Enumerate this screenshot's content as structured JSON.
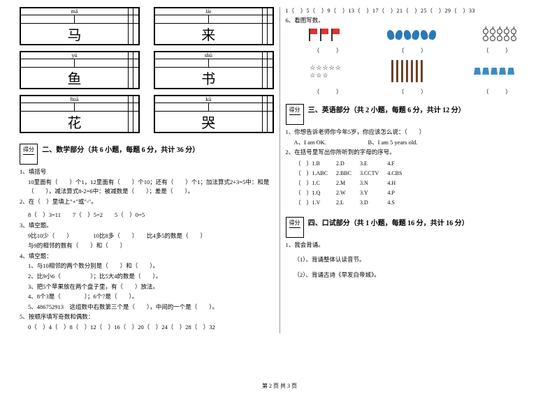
{
  "charBoxes": [
    {
      "pinyin": "mǎ",
      "char": "马"
    },
    {
      "pinyin": "lái",
      "char": "来"
    },
    {
      "pinyin": "yú",
      "char": "鱼"
    },
    {
      "pinyin": "shū",
      "char": "书"
    },
    {
      "pinyin": "huā",
      "char": "花"
    },
    {
      "pinyin": "kū",
      "char": "哭"
    }
  ],
  "scoreLabel": "得分",
  "section2": {
    "title": "二、数学部分（共 6 小题，每题 6 分，共计 36 分）",
    "q1": "1、填括号",
    "q1a": "10里面有（　　）个1，12里面有（　　）个10；还有（　　）个1；加法算式2+3=5中：和是（　　），减法算式8-2=6中：被减数是（　　）；差是（　　）。",
    "q2": "2、在（　）里填上\"+\"或\"-\"。",
    "q2a": "8（　）3=11　　7（　）5=2　　5（　）0=5",
    "q3": "3、填空题。",
    "q3a": "9比10少（　　）　　　　10比8多（　　）　　比4多5的数是（　　）",
    "q3b": "与9的相邻的数有（　　）和（　　）",
    "q4": "4、填空题：",
    "q4a": "1、与10相邻的两个数分别是（　　）和（　　）。",
    "q4b": "2、比9小6（　　　　　）；比5大4的数是（　　）。",
    "q4c": "3、把5个苹果放在两个盘子里，有（　　）放法。",
    "q4d": "4、8个3是（　　　　）；6个7是（　　）。",
    "q4e": "5、486752913　这组数中右数第三个是（　　），中间的一个是（　　）。",
    "q5": "5、按顺序填写奇数和偶数：",
    "q5a": "0（　）4（　）8（　）12（　）16（　）20（　）24（　）28（　）32"
  },
  "rightTop": {
    "seq": "1（　）5（　）9（　）13（　）17（　）21（　）25（　）29（　）33",
    "q6": "6、看图写数。",
    "flagCount": 3,
    "butterflyCount": 3,
    "cherryRows": [
      5,
      5
    ],
    "starText": "☆☆☆☆☆",
    "starText2": "☆☆☆",
    "stickCount": 7,
    "bucketCount": 5,
    "paren": "（　　　）"
  },
  "section3": {
    "title": "三、英语部分（共 2 小题，每题 6 分，共计 12 分）",
    "q1": "1、你想告诉老师你今年5岁，你应该怎么说：（　　）",
    "q1a": "A、I am OK.　　　　　　　B、I am 5 years old.",
    "q2": "2、在括号里写出你所听到的字母的序号。",
    "opts": [
      [
        "（　）1.B",
        "2.D",
        "3.E",
        "4.F"
      ],
      [
        "（　）1.ABC",
        "2.BBC",
        "3.CCTV",
        "4.CBS"
      ],
      [
        "（　）1.C",
        "2.M",
        "3.N",
        "4.H"
      ],
      [
        "（　）1.Q",
        "2.W",
        "3.Y",
        "4.P"
      ],
      [
        "（　）1.V",
        "2.L",
        "3.D",
        "4.S"
      ]
    ]
  },
  "section4": {
    "title": "四、口试部分（共 1 小题，每题 16 分，共计 16 分）",
    "q1": "1、我会背诵。",
    "q1a": "（1）、背诵整体认读音节。",
    "q1b": "（2）、背诵古诗《早发白帝城》。"
  },
  "footer": "第 2 页 共 3 页"
}
